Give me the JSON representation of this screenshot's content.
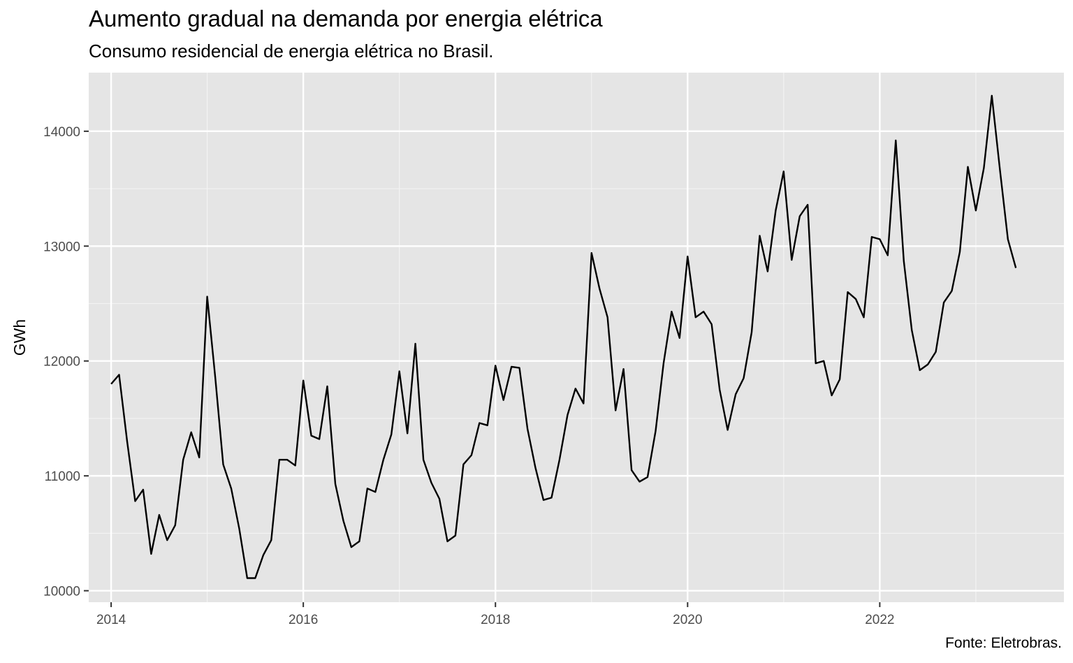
{
  "chart_data": {
    "type": "line",
    "title": "Aumento gradual na demanda por energia elétrica",
    "subtitle": "Consumo residencial de energia elétrica no Brasil.",
    "caption": "Fonte: Eletrobras.",
    "xlabel": "",
    "ylabel": "GWh",
    "x_ticks": [
      "2014",
      "2016",
      "2018",
      "2020",
      "2022"
    ],
    "y_ticks": [
      "10000",
      "11000",
      "12000",
      "13000",
      "14000"
    ],
    "ylim": [
      9900,
      14510
    ],
    "grid": true,
    "panel_color": "#e5e5e5",
    "line_color": "#000000",
    "start": "2014-01",
    "frequency": "monthly",
    "series": [
      {
        "values": [
          11800,
          11880,
          11300,
          10780,
          10880,
          10320,
          10660,
          10440,
          10570,
          11140,
          11380,
          11160,
          12560,
          11860,
          11100,
          10890,
          10540,
          10110,
          10110,
          10310,
          10440,
          11140,
          11140,
          11090,
          11830,
          11350,
          11320,
          11780,
          10930,
          10610,
          10380,
          10430,
          10890,
          10860,
          11140,
          11360,
          11910,
          11370,
          12150,
          11140,
          10940,
          10800,
          10430,
          10480,
          11100,
          11180,
          11460,
          11440,
          11960,
          11660,
          11950,
          11940,
          11410,
          11070,
          10790,
          10810,
          11140,
          11530,
          11760,
          11630,
          12940,
          12630,
          12380,
          11570,
          11930,
          11050,
          10950,
          10990,
          11390,
          11980,
          12430,
          12200,
          12910,
          12380,
          12430,
          12320,
          11750,
          11400,
          11710,
          11850,
          12250,
          13090,
          12780,
          13310,
          13650,
          12880,
          13260,
          13360,
          11980,
          12000,
          11700,
          11840,
          12600,
          12540,
          12380,
          13080,
          13060,
          12920,
          13920,
          12870,
          12270,
          11920,
          11970,
          12080,
          12510,
          12610,
          12950,
          13690,
          13310,
          13680,
          14310,
          13670,
          13060,
          12810
        ]
      }
    ]
  }
}
